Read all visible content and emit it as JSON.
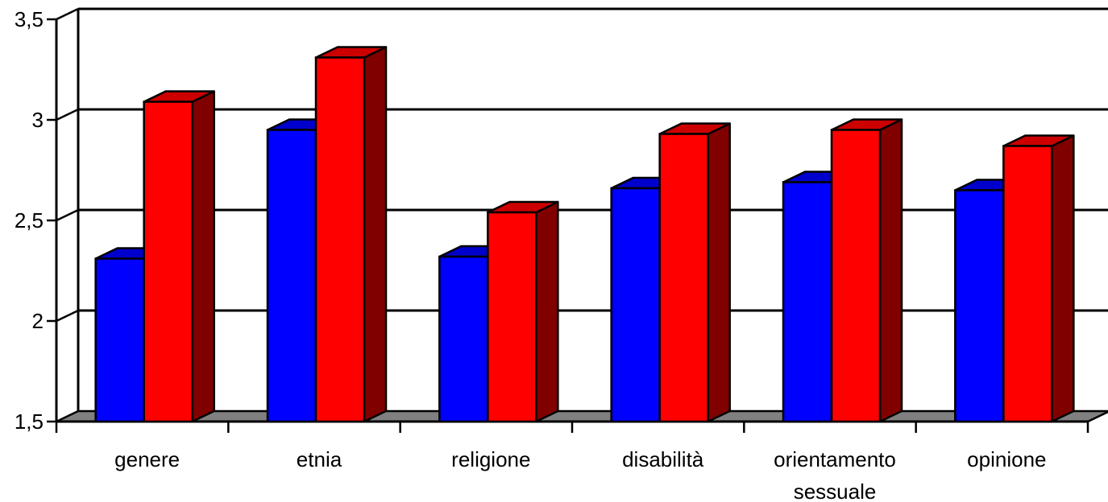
{
  "chart_data": {
    "type": "bar",
    "title": "",
    "xlabel": "",
    "ylabel": "",
    "ylim": [
      1.5,
      3.5
    ],
    "yticks": [
      "1,5",
      "2",
      "2,5",
      "3",
      "3,5"
    ],
    "ytick_values": [
      1.5,
      2,
      2.5,
      3,
      3.5
    ],
    "grid": true,
    "style": "3d",
    "categories": [
      [
        "genere"
      ],
      [
        "etnia"
      ],
      [
        "religione"
      ],
      [
        "disabilità"
      ],
      [
        "orientamento",
        "sessuale"
      ],
      [
        "opinione"
      ]
    ],
    "series": [
      {
        "values": [
          2.31,
          2.95,
          2.32,
          2.66,
          2.69,
          2.65
        ],
        "color": "#0000ff",
        "top": "#0000cc",
        "side": "#000080"
      },
      {
        "values": [
          3.09,
          3.31,
          2.54,
          2.93,
          2.95,
          2.87
        ],
        "color": "#ff0000",
        "top": "#cc0000",
        "side": "#800000"
      }
    ],
    "floor_color": "#808080"
  }
}
